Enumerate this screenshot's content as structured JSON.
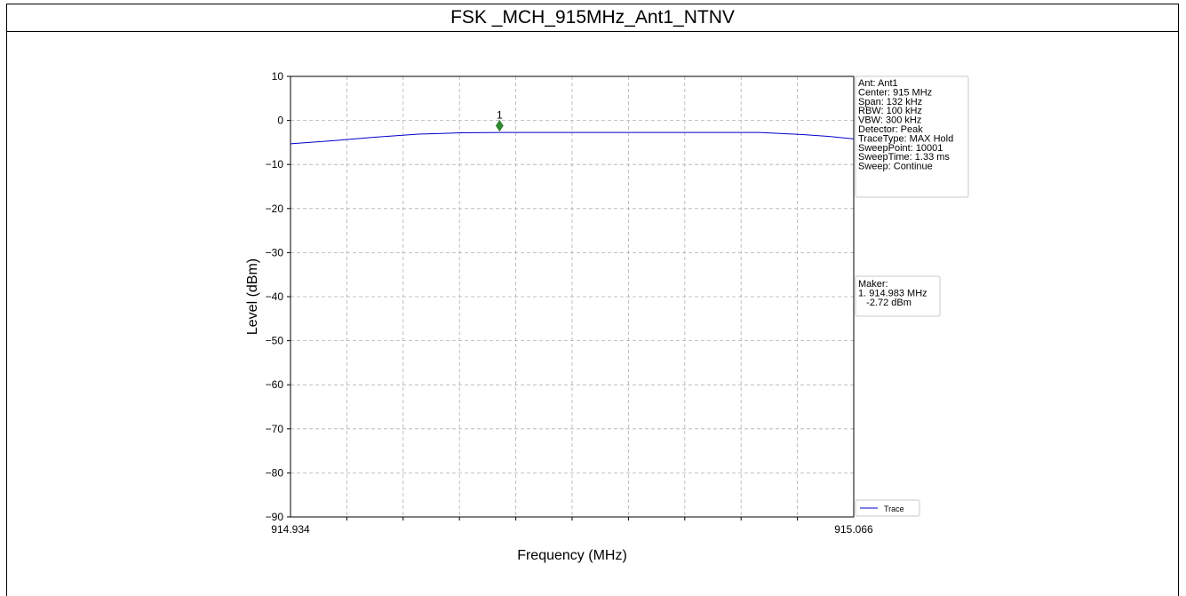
{
  "page": {
    "title": "FSK _MCH_915MHz_Ant1_NTNV"
  },
  "chart_data": {
    "type": "line",
    "xlabel": "Frequency (MHz)",
    "ylabel": "Level (dBm)",
    "xlim": [
      914.934,
      915.066
    ],
    "ylim": [
      -90,
      10
    ],
    "x_tick_labels": [
      "914.934",
      "915.066"
    ],
    "y_ticks": [
      10,
      0,
      -10,
      -20,
      -30,
      -40,
      -50,
      -60,
      -70,
      -80,
      -90
    ],
    "y_tick_labels": [
      "10",
      "0",
      "−10",
      "−20",
      "−30",
      "−40",
      "−50",
      "−60",
      "−70",
      "−80",
      "−90"
    ],
    "grid": true,
    "series": [
      {
        "name": "Trace",
        "color": "#0000cc",
        "x": [
          914.934,
          914.944,
          914.954,
          914.964,
          914.974,
          914.984,
          914.994,
          915.004,
          915.014,
          915.024,
          915.034,
          915.044,
          915.054,
          915.06,
          915.066
        ],
        "y": [
          -5.3,
          -4.6,
          -3.8,
          -3.1,
          -2.8,
          -2.72,
          -2.72,
          -2.72,
          -2.72,
          -2.72,
          -2.72,
          -2.72,
          -3.2,
          -3.6,
          -4.2
        ]
      }
    ],
    "marker": {
      "label": "1",
      "x": 914.983,
      "y": -1.2,
      "color": "#2e8b2e"
    },
    "info_box": [
      "Ant: Ant1",
      "Center: 915 MHz",
      "Span: 132 kHz",
      "RBW: 100 kHz",
      "VBW: 300 kHz",
      "Detector: Peak",
      "TraceType: MAX Hold",
      "SweepPoint: 10001",
      "SweepTime: 1.33 ms",
      "Sweep: Continue"
    ],
    "marker_box": [
      "Maker:",
      "1. 914.983 MHz",
      "   -2.72 dBm"
    ],
    "legend": {
      "placement": "bottom-right",
      "entries": [
        "Trace"
      ]
    }
  }
}
